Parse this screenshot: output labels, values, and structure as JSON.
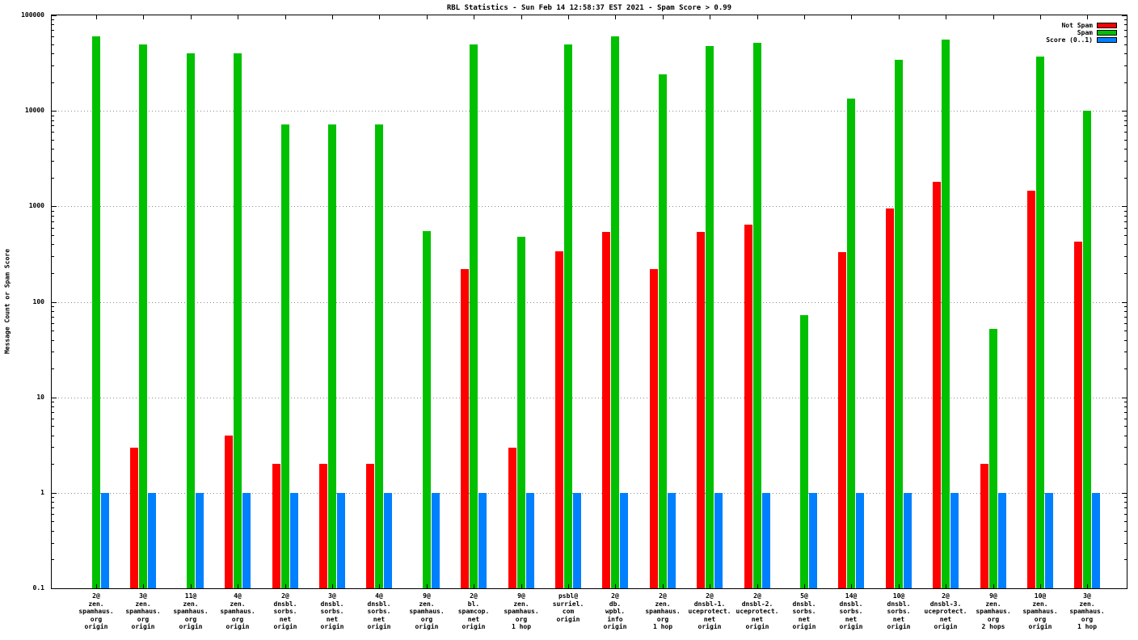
{
  "title": "RBL Statistics - Sun Feb 14 12:58:37 EST 2021 - Spam Score > 0.99",
  "ylabel": "Message Count or Spam Score",
  "legend": [
    {
      "label": "Not Spam",
      "color": "#ff0000"
    },
    {
      "label": "Spam",
      "color": "#00c000"
    },
    {
      "label": "Score (0..1)",
      "color": "#0080ff"
    }
  ],
  "chart_data": {
    "type": "bar",
    "scale": "log",
    "title": "RBL Statistics - Sun Feb 14 12:58:37 EST 2021 - Spam Score > 0.99",
    "ylabel": "Message Count or Spam Score",
    "ylim": [
      0.1,
      100000
    ],
    "ytics": [
      "100000",
      "10000",
      "1000",
      "100",
      "10",
      "1",
      "0.1"
    ],
    "grid": true,
    "legend_position": "top-right",
    "categories": [
      [
        "2@",
        "zen.",
        "spamhaus.",
        "org",
        "origin"
      ],
      [
        "3@",
        "zen.",
        "spamhaus.",
        "org",
        "origin"
      ],
      [
        "11@",
        "zen.",
        "spamhaus.",
        "org",
        "origin"
      ],
      [
        "4@",
        "zen.",
        "spamhaus.",
        "org",
        "origin"
      ],
      [
        "2@",
        "dnsbl.",
        "sorbs.",
        "net",
        "origin"
      ],
      [
        "3@",
        "dnsbl.",
        "sorbs.",
        "net",
        "origin"
      ],
      [
        "4@",
        "dnsbl.",
        "sorbs.",
        "net",
        "origin"
      ],
      [
        "9@",
        "zen.",
        "spamhaus.",
        "org",
        "origin"
      ],
      [
        "2@",
        "bl.",
        "spamcop.",
        "net",
        "origin"
      ],
      [
        "9@",
        "zen.",
        "spamhaus.",
        "org",
        "1 hop"
      ],
      [
        "psbl@",
        "surriel.",
        "com",
        "origin"
      ],
      [
        "2@",
        "db.",
        "wpbl.",
        "info",
        "origin"
      ],
      [
        "2@",
        "zen.",
        "spamhaus.",
        "org",
        "1 hop"
      ],
      [
        "2@",
        "dnsbl-1.",
        "uceprotect.",
        "net",
        "origin"
      ],
      [
        "2@",
        "dnsbl-2.",
        "uceprotect.",
        "net",
        "origin"
      ],
      [
        "5@",
        "dnsbl.",
        "sorbs.",
        "net",
        "origin"
      ],
      [
        "14@",
        "dnsbl.",
        "sorbs.",
        "net",
        "origin"
      ],
      [
        "10@",
        "dnsbl.",
        "sorbs.",
        "net",
        "origin"
      ],
      [
        "2@",
        "dnsbl-3.",
        "uceprotect.",
        "net",
        "origin"
      ],
      [
        "9@",
        "zen.",
        "spamhaus.",
        "org",
        "2 hops"
      ],
      [
        "10@",
        "zen.",
        "spamhaus.",
        "org",
        "origin"
      ],
      [
        "3@",
        "zen.",
        "spamhaus.",
        "org",
        "1 hop"
      ]
    ],
    "series": [
      {
        "name": "Not Spam",
        "color": "#ff0000",
        "values": [
          null,
          3,
          null,
          4,
          2,
          2,
          2,
          null,
          220,
          3,
          340,
          540,
          220,
          540,
          640,
          null,
          330,
          950,
          1800,
          2,
          1450,
          430
        ]
      },
      {
        "name": "Spam",
        "color": "#00c000",
        "values": [
          60000,
          50000,
          40000,
          40000,
          7200,
          7200,
          7200,
          550,
          50000,
          480,
          50000,
          60000,
          24000,
          48000,
          52000,
          72,
          13500,
          34000,
          56000,
          52,
          37000,
          10000
        ]
      },
      {
        "name": "Score (0..1)",
        "color": "#0080ff",
        "values": [
          1,
          1,
          1,
          1,
          1,
          1,
          1,
          1,
          1,
          1,
          1,
          1,
          1,
          1,
          1,
          1,
          1,
          1,
          1,
          1,
          1,
          1
        ]
      }
    ]
  }
}
